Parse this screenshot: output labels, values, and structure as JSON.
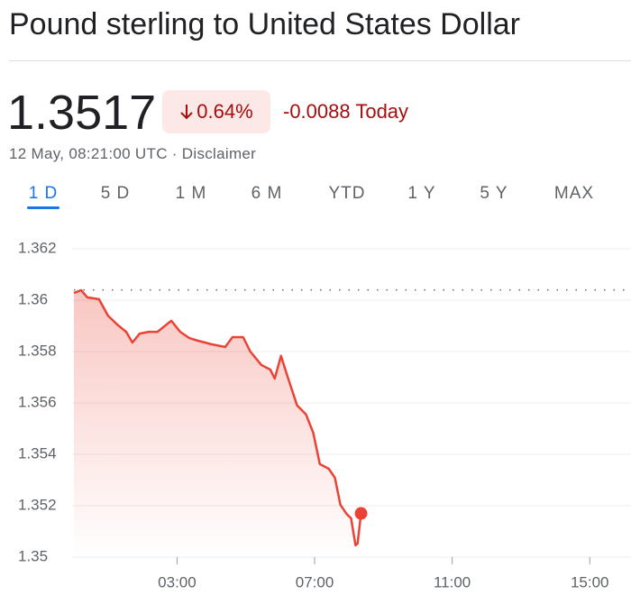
{
  "header": {
    "title": "Pound sterling to United States Dollar"
  },
  "quote": {
    "price": "1.3517",
    "change_percent": "0.64%",
    "change": "-0.0088 Today",
    "timestamp": "12 May, 08:21:00 UTC",
    "disclaimer": "Disclaimer"
  },
  "tabs": {
    "items": [
      "1 D",
      "5 D",
      "1 M",
      "6 M",
      "YTD",
      "1 Y",
      "5 Y",
      "MAX"
    ],
    "active": 0
  },
  "chart_data": {
    "type": "line",
    "color": "#ea4335",
    "x": [
      0,
      0.21,
      0.39,
      0.73,
      0.99,
      1.26,
      1.52,
      1.7,
      1.91,
      2.17,
      2.43,
      2.83,
      3.09,
      3.35,
      3.61,
      4.01,
      4.4,
      4.61,
      4.92,
      5.13,
      5.45,
      5.71,
      5.84,
      6.02,
      6.23,
      6.49,
      6.75,
      6.96,
      7.15,
      7.41,
      7.59,
      7.75,
      7.93,
      8.06,
      8.19,
      8.25,
      8.35
    ],
    "values": [
      1.36028,
      1.36039,
      1.36011,
      1.36004,
      1.3594,
      1.35905,
      1.35877,
      1.35835,
      1.3587,
      1.35877,
      1.35877,
      1.3592,
      1.35877,
      1.35853,
      1.35842,
      1.35828,
      1.35818,
      1.35856,
      1.35856,
      1.358,
      1.35748,
      1.3573,
      1.35695,
      1.35783,
      1.35695,
      1.3559,
      1.35555,
      1.35484,
      1.35362,
      1.35344,
      1.35309,
      1.35204,
      1.35168,
      1.35151,
      1.35046,
      1.35053,
      1.3517
    ],
    "previous_close": 1.3604,
    "xlim": [
      0,
      16.2
    ],
    "xticks": [
      {
        "value": 3,
        "label": "03:00"
      },
      {
        "value": 7,
        "label": "07:00"
      },
      {
        "value": 11,
        "label": "11:00"
      },
      {
        "value": 15,
        "label": "15:00"
      }
    ],
    "ylim": [
      1.35,
      1.362
    ],
    "yticks": [
      1.35,
      1.352,
      1.354,
      1.356,
      1.358,
      1.36,
      1.362
    ],
    "grid": true
  }
}
